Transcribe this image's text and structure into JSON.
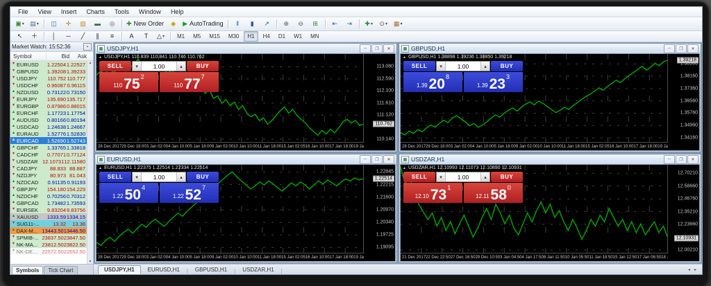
{
  "menu": {
    "items": [
      "File",
      "View",
      "Insert",
      "Charts",
      "Tools",
      "Window",
      "Help"
    ]
  },
  "toolbar": {
    "row1": [
      {
        "name": "new-chart-button",
        "glyph": "▣",
        "color": "#2e8b2e",
        "dropdown": true
      },
      {
        "name": "profiles-button",
        "glyph": "▤",
        "color": "#4a6a9a",
        "dropdown": true
      },
      {
        "sep": true
      },
      {
        "name": "market-watch-toggle",
        "glyph": "◫",
        "color": "#2d6aa8"
      },
      {
        "name": "data-window-toggle",
        "glyph": "✛",
        "color": "#b07020"
      },
      {
        "name": "navigator-toggle",
        "glyph": "▨",
        "color": "#c09020"
      },
      {
        "name": "terminal-toggle",
        "glyph": "▬",
        "color": "#3a6a3a"
      },
      {
        "name": "strategy-tester-toggle",
        "glyph": "◎",
        "color": "#555"
      },
      {
        "sep": true
      },
      {
        "name": "new-order-button",
        "glyph": "✚",
        "color": "#2e8b2e",
        "label": "New Order"
      },
      {
        "name": "metaeditor-button",
        "glyph": "◆",
        "color": "#d0a020"
      },
      {
        "name": "autotrading-button",
        "glyph": "▶",
        "color": "#1f9a1f",
        "label": "AutoTrading"
      },
      {
        "sep": true
      },
      {
        "name": "bar-chart-mode-button",
        "glyph": "‖",
        "color": "#1a5aa0"
      },
      {
        "name": "candlestick-mode-button",
        "glyph": "▮",
        "color": "#1a5aa0"
      },
      {
        "name": "line-chart-mode-button",
        "glyph": "↗",
        "color": "#1a5aa0"
      },
      {
        "sep": true
      },
      {
        "name": "zoom-in-button",
        "glyph": "⊕",
        "color": "#555"
      },
      {
        "name": "zoom-out-button",
        "glyph": "⊖",
        "color": "#555"
      },
      {
        "name": "tile-windows-button",
        "glyph": "⊞",
        "color": "#2e8b2e"
      },
      {
        "sep": true
      },
      {
        "name": "indicators-window-button",
        "glyph": "⇤",
        "color": "#2d6aa8"
      },
      {
        "name": "objects-window-button",
        "glyph": "⇥",
        "color": "#2d6aa8"
      },
      {
        "sep": true
      },
      {
        "name": "add-indicator-dropdown",
        "glyph": "✚",
        "color": "#2e8b2e",
        "dropdown": true
      },
      {
        "name": "periods-dropdown",
        "glyph": "⊙",
        "color": "#555",
        "dropdown": true
      },
      {
        "name": "templates-dropdown",
        "glyph": "▦",
        "color": "#a07030",
        "dropdown": true
      }
    ],
    "row2": [
      {
        "name": "cursor-tool",
        "glyph": "↖",
        "color": "#222"
      },
      {
        "name": "crosshair-tool",
        "glyph": "＋",
        "color": "#222"
      },
      {
        "sep": true
      },
      {
        "name": "vertical-line-tool",
        "glyph": "│",
        "color": "#222"
      },
      {
        "name": "horizontal-line-tool",
        "glyph": "─",
        "color": "#222"
      },
      {
        "name": "trendline-tool",
        "glyph": "╱",
        "color": "#222"
      },
      {
        "name": "channel-tool",
        "glyph": "∥",
        "color": "#222"
      },
      {
        "name": "fibonacci-tool",
        "glyph": "≡",
        "color": "#222"
      },
      {
        "sep": true
      },
      {
        "name": "text-tool",
        "glyph": "A",
        "color": "#222"
      },
      {
        "name": "label-tool",
        "glyph": "T",
        "color": "#222"
      },
      {
        "name": "shapes-dropdown",
        "glyph": "△",
        "color": "#222",
        "dropdown": true
      },
      {
        "sep": true
      }
    ],
    "new_order_label": "New Order",
    "autotrading_label": "AutoTrading",
    "timeframes": [
      "M1",
      "M5",
      "M15",
      "M30",
      "H1",
      "H4",
      "D1",
      "W1",
      "MN"
    ],
    "active_timeframe": "H1"
  },
  "market_watch": {
    "header": "Market Watch: 15:52:36",
    "columns": [
      "Symbol",
      "Bid",
      "Ask"
    ],
    "rows": [
      {
        "symbol": "EURUSD",
        "bid": "1.22504",
        "ask": "1.22527",
        "dir": "down"
      },
      {
        "symbol": "GBPUSD",
        "bid": "1.39208",
        "ask": "1.39233",
        "dir": "down"
      },
      {
        "symbol": "USDJPY",
        "bid": "110.752",
        "ask": "110.777",
        "dir": "down"
      },
      {
        "symbol": "USDCHF",
        "bid": "0.96087",
        "ask": "0.96115",
        "dir": "down"
      },
      {
        "symbol": "NZDUSD",
        "bid": "0.73122",
        "ask": "0.73150",
        "dir": "up"
      },
      {
        "symbol": "EURJPY",
        "bid": "135.690",
        "ask": "135.717",
        "dir": "down"
      },
      {
        "symbol": "EURGBP",
        "bid": "0.87986",
        "ask": "0.88015",
        "dir": "down"
      },
      {
        "symbol": "EURCHF",
        "bid": "1.17723",
        "ask": "1.17754",
        "dir": "up"
      },
      {
        "symbol": "AUDUSD",
        "bid": "0.80166",
        "ask": "0.80194",
        "dir": "up"
      },
      {
        "symbol": "USDCAD",
        "bid": "1.24638",
        "ask": "1.24667",
        "dir": "up"
      },
      {
        "symbol": "EURAUD",
        "bid": "1.52776",
        "ask": "1.52830",
        "dir": "up"
      },
      {
        "symbol": "EURCAD",
        "bid": "1.52690",
        "ask": "1.52743",
        "dir": "up",
        "selected": true
      },
      {
        "symbol": "GBPCHF",
        "bid": "1.33765",
        "ask": "1.33818",
        "dir": "up"
      },
      {
        "symbol": "CADCHF",
        "bid": "0.77071",
        "ask": "0.77124",
        "dir": "down"
      },
      {
        "symbol": "USDZAR",
        "bid": "12.10731",
        "ask": "12.11580",
        "dir": "down"
      },
      {
        "symbol": "CADJPY",
        "bid": "88.833",
        "ask": "88.887",
        "dir": "down"
      },
      {
        "symbol": "NZDJPY",
        "bid": "80.973",
        "ask": "81.043",
        "dir": "down"
      },
      {
        "symbol": "NZDCAD",
        "bid": "0.91135",
        "ask": "0.91193",
        "dir": "up"
      },
      {
        "symbol": "GBPJPY",
        "bid": "154.180",
        "ask": "154.229",
        "dir": "down"
      },
      {
        "symbol": "NZDCHF",
        "bid": "0.70256",
        "ask": "0.70312",
        "dir": "up"
      },
      {
        "symbol": "GBPCAD",
        "bid": "1.73482",
        "ask": "1.73593",
        "dir": "up"
      },
      {
        "symbol": "EURSEK",
        "bid": "9.83204",
        "ask": "9.83756",
        "dir": "down"
      },
      {
        "symbol": "XAUUSD",
        "bid": "1333.59",
        "ask": "1334.15",
        "dir": "up",
        "bg": "#c6c6c6"
      },
      {
        "symbol": "SUG11-...",
        "bid": "13.32",
        "ask": "13.36",
        "dir": "down",
        "bg": "#6fd1e0"
      },
      {
        "symbol": "DAX-M...",
        "bid": "13443.50",
        "ask": "13446.50",
        "dir": "up",
        "bg": "#f09a4a"
      },
      {
        "symbol": "SPMIB-...",
        "bid": "23837.50",
        "ask": "23847.50",
        "dir": "down"
      },
      {
        "symbol": "NK-MA...",
        "bid": "23812.50",
        "ask": "23822.50",
        "dir": "down"
      },
      {
        "symbol": "NK-DE...",
        "bid": "22572.50",
        "ask": "22652.50",
        "dir": "down",
        "muted": true
      }
    ],
    "tabs": [
      "Symbols",
      "Tick Chart"
    ],
    "active_tab": "Symbols"
  },
  "charts": [
    {
      "title": "USDJPY,H1",
      "info": "USDJPY,H1  110.839 110.841 110.746 110.762",
      "current_price": "110.762",
      "trade": {
        "sell_label": "SELL",
        "buy_label": "BUY",
        "volume": "1.00",
        "theme": "red",
        "sell_prefix": "110",
        "sell_big": "75",
        "sell_sup": "2",
        "buy_prefix": "110",
        "buy_big": "77",
        "buy_sup": "7"
      }
    },
    {
      "title": "GBPUSD,H1",
      "info": "GBPUSD,H1  1.38898 1.39236 1.38850 1.39218",
      "current_price": "1.39218",
      "trade": {
        "sell_label": "SELL",
        "buy_label": "BUY",
        "volume": "1.00",
        "theme": "blue",
        "sell_prefix": "1.39",
        "sell_big": "20",
        "sell_sup": "8",
        "buy_prefix": "1.39",
        "buy_big": "23",
        "buy_sup": "3"
      }
    },
    {
      "title": "EURUSD,H1",
      "info": "EURUSD,H1  1.22375 1.22514 1.22334 1.22514",
      "current_price": "1.22514",
      "trade": {
        "sell_label": "SELL",
        "buy_label": "BUY",
        "volume": "1.00",
        "theme": "blue",
        "sell_prefix": "1.22",
        "sell_big": "50",
        "sell_sup": "4",
        "buy_prefix": "1.22",
        "buy_big": "52",
        "buy_sup": "7"
      }
    },
    {
      "title": "USDZAR,H1",
      "info": "USDZAR,H1  12.10993 12.11073 12.10890 12.10931",
      "current_price": "12.10931",
      "trade": {
        "sell_label": "SELL",
        "buy_label": "BUY",
        "volume": "1.00",
        "theme": "red",
        "sell_prefix": "12.10",
        "sell_big": "73",
        "sell_sup": "1",
        "buy_prefix": "12.11",
        "buy_big": "58",
        "buy_sup": "0"
      }
    }
  ],
  "chart_data": [
    {
      "type": "line",
      "symbol": "USDJPY",
      "timeframe": "H1",
      "title": "USDJPY,H1",
      "open": 110.839,
      "high": 110.841,
      "low": 110.746,
      "close": 110.762,
      "ylim": [
        110.0,
        113.6
      ],
      "y_ticks": [
        "113.080",
        "112.590",
        "112.100",
        "111.610",
        "111.120",
        "110.140"
      ],
      "x_labels": [
        "28 Dec 2017",
        "29 Dec 18:00",
        "3 Jan 02:00",
        "4 Jan 10:00",
        "5 Jan 18:00",
        "9 Jan 02:00",
        "10 Jan 10:00",
        "11 Jan 18:00",
        "15 Jan 02:05",
        "16 Jan 10:00",
        "17 Jan 18:00",
        "19 Jan 02:00",
        "22 Jan 10:05"
      ],
      "values": [
        112.75,
        112.9,
        112.8,
        113.0,
        112.85,
        112.95,
        113.1,
        112.9,
        113.05,
        113.2,
        113.39,
        113.1,
        113.25,
        113.0,
        113.15,
        112.9,
        113.05,
        112.8,
        112.95,
        112.7,
        112.85,
        112.55,
        112.3,
        112.45,
        112.2,
        112.35,
        112.0,
        112.15,
        111.8,
        111.9,
        111.6,
        111.75,
        111.5,
        111.65,
        111.35,
        111.5,
        111.2,
        111.05,
        111.15,
        110.9,
        111.0,
        110.75,
        110.9,
        111.1,
        111.3,
        111.45,
        111.2,
        111.35,
        111.1,
        110.95,
        110.8,
        110.6,
        110.45,
        110.3,
        110.5,
        110.35,
        110.55,
        110.4,
        110.6,
        110.85,
        110.95,
        110.8,
        110.9,
        110.7,
        110.762
      ]
    },
    {
      "type": "line",
      "symbol": "GBPUSD",
      "timeframe": "H1",
      "title": "GBPUSD,H1",
      "open": 1.38898,
      "high": 1.39236,
      "low": 1.3885,
      "close": 1.39218,
      "ylim": [
        1.3385,
        1.396
      ],
      "y_ticks": [
        "1.38960",
        "1.38160",
        "1.37360",
        "1.36560",
        "1.35760",
        "1.34960",
        "1.34160"
      ],
      "x_labels": [
        "28 Dec 2017",
        "29 Dec 18:00",
        "3 Jan 02:00",
        "4 Jan 10:00",
        "5 Jan 18:00",
        "9 Jan 02:00",
        "10 Jan 10:00",
        "11 Jan 18:00",
        "15 Jan 02:05",
        "16 Jan 10:00",
        "17 Jan 18:00",
        "19 Jan 02:00",
        "22 Jan 10:05"
      ],
      "values": [
        1.345,
        1.3435,
        1.346,
        1.3445,
        1.347,
        1.3455,
        1.348,
        1.35,
        1.3485,
        1.351,
        1.353,
        1.3515,
        1.3545,
        1.356,
        1.354,
        1.352,
        1.3495,
        1.351,
        1.3485,
        1.35,
        1.352,
        1.3545,
        1.3565,
        1.355,
        1.3575,
        1.3595,
        1.361,
        1.359,
        1.3615,
        1.3635,
        1.365,
        1.363,
        1.3655,
        1.364,
        1.362,
        1.36,
        1.358,
        1.3595,
        1.3615,
        1.36,
        1.3625,
        1.3645,
        1.3665,
        1.3685,
        1.37,
        1.372,
        1.374,
        1.3725,
        1.375,
        1.377,
        1.379,
        1.3775,
        1.38,
        1.382,
        1.384,
        1.386,
        1.388,
        1.3855,
        1.3875,
        1.39,
        1.3885,
        1.391,
        1.39218
      ]
    },
    {
      "type": "line",
      "symbol": "EURUSD",
      "timeframe": "H1",
      "title": "EURUSD,H1",
      "open": 1.22375,
      "high": 1.22514,
      "low": 1.22334,
      "close": 1.22514,
      "ylim": [
        1.188,
        1.232
      ],
      "y_ticks": [
        "1.22845",
        "1.22215",
        "1.21600",
        "1.20970",
        "1.20340",
        "1.19725",
        "1.19095"
      ],
      "x_labels": [
        "28 Dec 2017",
        "29 Dec 18:00",
        "3 Jan 02:00",
        "4 Jan 10:00",
        "5 Jan 18:00",
        "9 Jan 02:00",
        "10 Jan 10:00",
        "11 Jan 18:00",
        "15 Jan 02:05",
        "16 Jan 10:00",
        "17 Jan 18:00",
        "19 Jan 02:00",
        "22 Jan 10:05"
      ],
      "values": [
        1.1935,
        1.192,
        1.1945,
        1.196,
        1.194,
        1.1965,
        1.1985,
        1.2,
        1.198,
        1.2005,
        1.2025,
        1.201,
        1.2035,
        1.205,
        1.203,
        1.2015,
        1.204,
        1.206,
        1.208,
        1.2065,
        1.209,
        1.211,
        1.213,
        1.215,
        1.217,
        1.219,
        1.221,
        1.223,
        1.225,
        1.227,
        1.2285,
        1.226,
        1.224,
        1.222,
        1.22,
        1.2215,
        1.2235,
        1.222,
        1.224,
        1.2225,
        1.2205,
        1.219,
        1.221,
        1.223,
        1.2215,
        1.2235,
        1.222,
        1.22,
        1.222,
        1.224,
        1.2225,
        1.2245,
        1.223,
        1.2215,
        1.2235,
        1.225,
        1.224,
        1.2255,
        1.2245,
        1.22514
      ]
    },
    {
      "type": "line",
      "symbol": "USDZAR",
      "timeframe": "H1",
      "title": "USDZAR,H1",
      "open": 12.10993,
      "high": 12.11073,
      "low": 12.1089,
      "close": 12.10931,
      "ylim": [
        11.97,
        12.78
      ],
      "y_ticks": [
        "12.70210",
        "12.58660",
        "12.46760",
        "12.35210",
        "12.23660",
        "12.00210"
      ],
      "x_labels": [
        "21 Dec 2017",
        "22 Dec 22:50",
        "27 Dec 16:50",
        "29 Dec 10:50",
        "3 Jan 04:50",
        "4 Jan 17:50",
        "8 Jan 11:50",
        "10 Jan 05:50",
        "11 Jan 18:50",
        "15 Jan 12:50",
        "17 Jan 06:50",
        "18 Jan 19:50",
        "22 Jan 13:50"
      ],
      "values": [
        12.76,
        12.6,
        12.68,
        12.5,
        12.42,
        12.35,
        12.28,
        12.34,
        12.22,
        12.3,
        12.18,
        12.26,
        12.15,
        12.24,
        12.32,
        12.22,
        12.12,
        12.2,
        12.3,
        12.38,
        12.28,
        12.42,
        12.34,
        12.24,
        12.32,
        12.2,
        12.14,
        12.24,
        12.34,
        12.26,
        12.36,
        12.44,
        12.34,
        12.42,
        12.3,
        12.36,
        12.26,
        12.18,
        12.28,
        12.2,
        12.1,
        12.18,
        12.28,
        12.22,
        12.32,
        12.26,
        12.38,
        12.3,
        12.22,
        12.28,
        12.18,
        12.26,
        12.16,
        12.24,
        12.14,
        12.2,
        12.26,
        12.16,
        12.22,
        12.109
      ]
    }
  ],
  "bottom_tabs": [
    "USDJPY,H1",
    "EURUSD,H1",
    "GBPUSD,H1",
    "USDZAR,H1"
  ],
  "active_bottom_tab": "USDJPY,H1",
  "colors": {
    "sell_buy_red": "#c2282c",
    "sell_buy_blue": "#2a36cf",
    "chart_line": "#00a800",
    "chart_bg": "#000000",
    "bid_up": "#0000b8",
    "bid_down": "#c00000"
  }
}
